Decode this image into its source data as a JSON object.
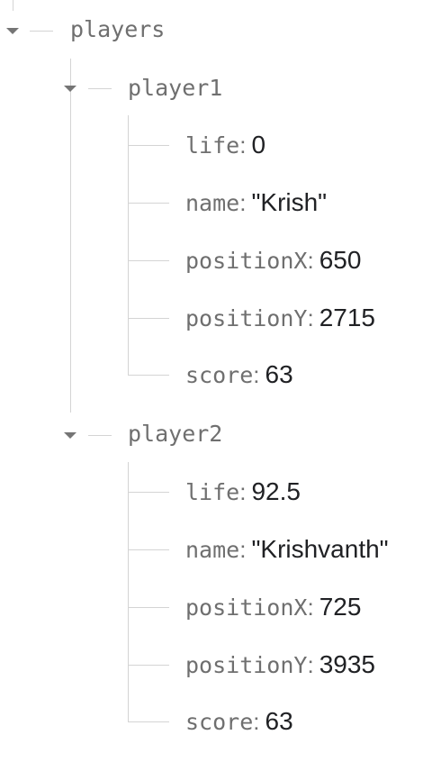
{
  "tree": {
    "root": {
      "label": "players",
      "children": [
        {
          "label": "player1",
          "fields": [
            {
              "key": "life",
              "value": "0"
            },
            {
              "key": "name",
              "value": "\"Krish\""
            },
            {
              "key": "positionX",
              "value": "650"
            },
            {
              "key": "positionY",
              "value": "2715"
            },
            {
              "key": "score",
              "value": "63"
            }
          ]
        },
        {
          "label": "player2",
          "fields": [
            {
              "key": "life",
              "value": "92.5"
            },
            {
              "key": "name",
              "value": "\"Krishvanth\""
            },
            {
              "key": "positionX",
              "value": "725"
            },
            {
              "key": "positionY",
              "value": "3935"
            },
            {
              "key": "score",
              "value": "63"
            }
          ]
        }
      ]
    }
  },
  "icons": {
    "expand": "caret-down-icon"
  },
  "colors": {
    "key_text": "#6f6f6f",
    "value_text": "#202124",
    "tree_lines": "#d4d4d4",
    "caret": "#757575"
  }
}
